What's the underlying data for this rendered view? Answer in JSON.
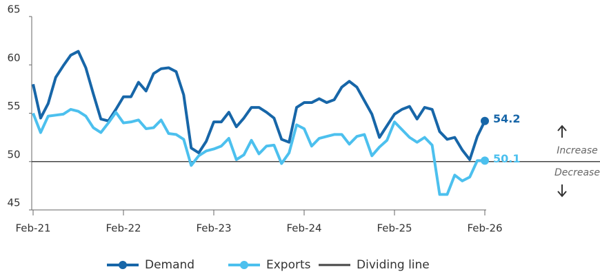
{
  "chart_data": {
    "type": "line",
    "categories": [
      "Feb-21",
      null,
      null,
      null,
      null,
      null,
      null,
      null,
      null,
      null,
      null,
      null,
      "Feb-22",
      null,
      null,
      null,
      null,
      null,
      null,
      null,
      null,
      null,
      null,
      null,
      "Feb-23",
      null,
      null,
      null,
      null,
      null,
      null,
      null,
      null,
      null,
      null,
      null,
      "Feb-24",
      null,
      null,
      null,
      null,
      null,
      null,
      null,
      null,
      null,
      null,
      null,
      "Feb-25",
      null,
      null,
      null,
      null,
      null,
      null,
      null,
      null,
      null,
      null,
      null,
      "Feb-26"
    ],
    "series": [
      {
        "name": "Demand",
        "color": "#1766a8",
        "values": [
          58.0,
          54.5,
          56.0,
          58.7,
          59.9,
          61.0,
          61.4,
          59.7,
          57.0,
          54.4,
          54.2,
          55.4,
          56.7,
          56.7,
          58.2,
          57.3,
          59.1,
          59.6,
          59.7,
          59.3,
          56.9,
          51.4,
          50.9,
          52.1,
          54.1,
          54.1,
          55.1,
          53.6,
          54.5,
          55.6,
          55.6,
          55.1,
          54.5,
          52.3,
          52.0,
          55.6,
          56.1,
          56.1,
          56.5,
          56.1,
          56.4,
          57.7,
          58.3,
          57.7,
          56.3,
          54.9,
          52.5,
          53.7,
          54.9,
          55.4,
          55.7,
          54.4,
          55.6,
          55.4,
          53.1,
          52.3,
          52.5,
          51.2,
          50.2,
          52.6,
          54.2
        ]
      },
      {
        "name": "Exports",
        "color": "#4cc0ee",
        "values": [
          55.0,
          53.0,
          54.7,
          54.8,
          54.9,
          55.4,
          55.2,
          54.7,
          53.5,
          53.0,
          54.0,
          55.1,
          54.0,
          54.1,
          54.3,
          53.4,
          53.5,
          54.3,
          52.9,
          52.8,
          52.3,
          49.6,
          50.6,
          51.1,
          51.3,
          51.6,
          52.4,
          50.2,
          50.7,
          52.2,
          50.8,
          51.6,
          51.7,
          49.8,
          50.9,
          53.8,
          53.4,
          51.6,
          52.4,
          52.6,
          52.8,
          52.8,
          51.8,
          52.6,
          52.8,
          50.6,
          51.5,
          52.2,
          54.1,
          53.3,
          52.5,
          52.0,
          52.5,
          51.7,
          46.6,
          46.6,
          48.6,
          48.0,
          48.4,
          50.1,
          50.1
        ]
      }
    ],
    "reference_line": {
      "name": "Dividing line",
      "value": 50,
      "color": "#444"
    },
    "annotations": [
      "Increase",
      "Decrease"
    ],
    "ylim": [
      45,
      65
    ],
    "yticks": [
      45,
      50,
      55,
      60,
      65
    ]
  }
}
